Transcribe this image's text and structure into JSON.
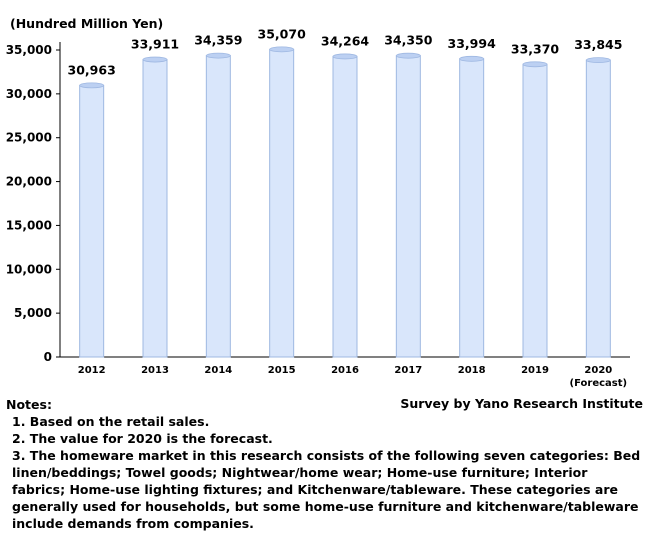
{
  "chart_data": {
    "type": "bar",
    "unit_label": "(Hundred Million Yen)",
    "categories": [
      "2012",
      "2013",
      "2014",
      "2015",
      "2016",
      "2017",
      "2018",
      "2019",
      "2020"
    ],
    "category_sublabels": [
      "",
      "",
      "",
      "",
      "",
      "",
      "",
      "",
      "(Forecast)"
    ],
    "values": [
      30963,
      33911,
      34359,
      35070,
      34264,
      34350,
      33994,
      33370,
      33845
    ],
    "value_labels": [
      "30,963",
      "33,911",
      "34,359",
      "35,070",
      "34,264",
      "34,350",
      "33,994",
      "33,370",
      "33,845"
    ],
    "ylim": [
      0,
      35000
    ],
    "yticks": [
      0,
      5000,
      10000,
      15000,
      20000,
      25000,
      30000,
      35000
    ],
    "ytick_labels": [
      "0",
      "5,000",
      "10,000",
      "15,000",
      "20,000",
      "25,000",
      "30,000",
      "35,000"
    ],
    "grid": false,
    "colors": {
      "bar_fill": "#d9e6fb",
      "bar_edge": "#9fb8e2",
      "bar_top": "#bcd0f2"
    }
  },
  "notes": {
    "heading": "Notes:",
    "lines": [
      "1. Based on the retail sales.",
      "2. The value for 2020 is the forecast.",
      "3. The homeware market in this research consists of the following seven categories: Bed linen/beddings; Towel goods; Nightwear/home wear; Home-use furniture; Interior fabrics; Home-use lighting fixtures; and Kitchenware/tableware. These categories are generally used for households, but some home-use furniture and kitchenware/tableware include demands from companies."
    ]
  },
  "source": "Survey by Yano Research Institute"
}
